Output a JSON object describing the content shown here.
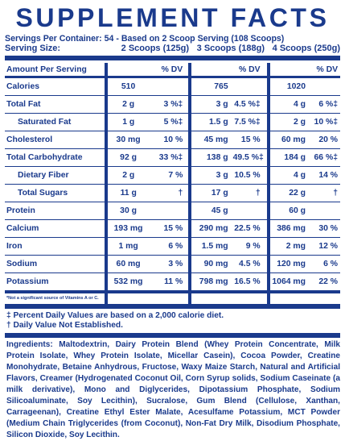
{
  "title": "SUPPLEMENT FACTS",
  "servings_line": "Servings Per Container: 54 - Based on 2 Scoop Serving (108 Scoops)",
  "serving_size": {
    "label": "Serving Size:",
    "col1": "2 Scoops (125g)",
    "col2": "3 Scoops (188g)",
    "col3": "4 Scoops (250g)"
  },
  "header": {
    "label": "Amount Per Serving",
    "dv1": "% DV",
    "dv2": "% DV",
    "dv3": "% DV"
  },
  "rows": [
    {
      "label": "Calories",
      "a1": "510",
      "d1": "",
      "a2": "765",
      "d2": "",
      "a3": "1020",
      "d3": ""
    },
    {
      "label": "Total Fat",
      "a1": "2 g",
      "d1": "3 %‡",
      "a2": "3 g",
      "d2": "4.5 %‡",
      "a3": "4 g",
      "d3": "6 %‡"
    },
    {
      "label": "Saturated Fat",
      "a1": "1 g",
      "d1": "5 %‡",
      "a2": "1.5 g",
      "d2": "7.5 %‡",
      "a3": "2 g",
      "d3": "10 %‡"
    },
    {
      "label": "Cholesterol",
      "a1": "30 mg",
      "d1": "10 %",
      "a2": "45 mg",
      "d2": "15 %",
      "a3": "60 mg",
      "d3": "20 %"
    },
    {
      "label": "Total Carbohydrate",
      "a1": "92 g",
      "d1": "33 %‡",
      "a2": "138 g",
      "d2": "49.5 %‡",
      "a3": "184 g",
      "d3": "66 %‡"
    },
    {
      "label": "Dietary Fiber",
      "a1": "2 g",
      "d1": "7 %",
      "a2": "3 g",
      "d2": "10.5 %",
      "a3": "4 g",
      "d3": "14 %"
    },
    {
      "label": "Total Sugars",
      "a1": "11 g",
      "d1": "†",
      "a2": "17 g",
      "d2": "†",
      "a3": "22 g",
      "d3": "†"
    },
    {
      "label": "Protein",
      "a1": "30 g",
      "d1": "",
      "a2": "45 g",
      "d2": "",
      "a3": "60 g",
      "d3": ""
    },
    {
      "label": "Calcium",
      "a1": "193 mg",
      "d1": "15 %",
      "a2": "290 mg",
      "d2": "22.5 %",
      "a3": "386 mg",
      "d3": "30 %"
    },
    {
      "label": "Iron",
      "a1": "1 mg",
      "d1": "6 %",
      "a2": "1.5 mg",
      "d2": "9 %",
      "a3": "2 mg",
      "d3": "12 %"
    },
    {
      "label": "Sodium",
      "a1": "60 mg",
      "d1": "3 %",
      "a2": "90 mg",
      "d2": "4.5 %",
      "a3": "120 mg",
      "d3": "6 %"
    },
    {
      "label": "Potassium",
      "a1": "532 mg",
      "d1": "11 %",
      "a2": "798 mg",
      "d2": "16.5 %",
      "a3": "1064 mg",
      "d3": "22 %"
    }
  ],
  "footnote": "*Not a significant source of Vitamins A or C.",
  "notes": [
    "‡ Percent Daily Values are based on a 2,000 calorie diet.",
    "† Daily Value Not Established."
  ],
  "ingredients": {
    "label": "Ingredients:",
    "text": "Maltodextrin, Dairy Protein Blend (Whey Protein Concentrate, Milk Protein Isolate, Whey Protein Isolate, Micellar Casein), Cocoa Powder, Creatine Monohydrate, Betaine Anhydrous, Fructose, Waxy Maize Starch, Natural and Artificial Flavors, Creamer (Hydrogenated Coconut Oil, Corn Syrup solids, Sodium Caseinate (a milk derivative), Mono and Diglycerides, Dipotassium Phosphate, Sodium Silicoaluminate, Soy Lecithin), Sucralose, Gum Blend (Cellulose, Xanthan, Carrageenan), Creatine Ethyl Ester Malate, Acesulfame Potassium, MCT Powder (Medium Chain Triglycerides (from Coconut), Non-Fat Dry Milk, Disodium Phosphate, Silicon Dioxide, Soy Lecithin."
  }
}
